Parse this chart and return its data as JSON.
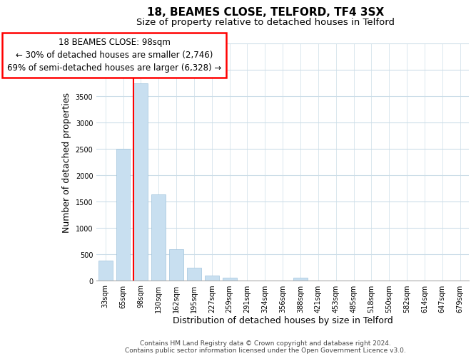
{
  "title": "18, BEAMES CLOSE, TELFORD, TF4 3SX",
  "subtitle": "Size of property relative to detached houses in Telford",
  "xlabel": "Distribution of detached houses by size in Telford",
  "ylabel": "Number of detached properties",
  "categories": [
    "33sqm",
    "65sqm",
    "98sqm",
    "130sqm",
    "162sqm",
    "195sqm",
    "227sqm",
    "259sqm",
    "291sqm",
    "324sqm",
    "356sqm",
    "388sqm",
    "421sqm",
    "453sqm",
    "485sqm",
    "518sqm",
    "550sqm",
    "582sqm",
    "614sqm",
    "647sqm",
    "679sqm"
  ],
  "values": [
    380,
    2500,
    3750,
    1640,
    600,
    240,
    95,
    55,
    0,
    0,
    0,
    55,
    0,
    0,
    0,
    0,
    0,
    0,
    0,
    0,
    0
  ],
  "bar_color": "#c8dff0",
  "ylim": [
    0,
    4500
  ],
  "yticks": [
    0,
    500,
    1000,
    1500,
    2000,
    2500,
    3000,
    3500,
    4000,
    4500
  ],
  "annotation_title": "18 BEAMES CLOSE: 98sqm",
  "annotation_line1": "← 30% of detached houses are smaller (2,746)",
  "annotation_line2": "69% of semi-detached houses are larger (6,328) →",
  "footer_line1": "Contains HM Land Registry data © Crown copyright and database right 2024.",
  "footer_line2": "Contains public sector information licensed under the Open Government Licence v3.0.",
  "background_color": "#ffffff",
  "grid_color": "#ccdde8",
  "title_fontsize": 11,
  "subtitle_fontsize": 9.5,
  "axis_label_fontsize": 9,
  "tick_fontsize": 7,
  "annotation_fontsize": 8.5,
  "footer_fontsize": 6.5
}
